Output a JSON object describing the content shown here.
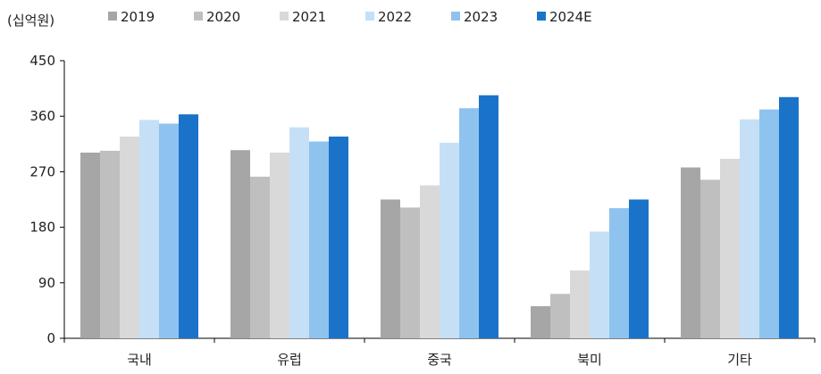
{
  "chart_data": {
    "type": "bar",
    "unit_label": "(십억원)",
    "categories": [
      "국내",
      "유럽",
      "중국",
      "북미",
      "기타"
    ],
    "series": [
      {
        "name": "2019",
        "color": "#a6a6a6",
        "values": [
          301,
          305,
          225,
          52,
          277
        ]
      },
      {
        "name": "2020",
        "color": "#bfbfbf",
        "values": [
          304,
          262,
          212,
          72,
          257
        ]
      },
      {
        "name": "2021",
        "color": "#d9d9d9",
        "values": [
          327,
          301,
          248,
          110,
          291
        ]
      },
      {
        "name": "2022",
        "color": "#c5e0f6",
        "values": [
          354,
          342,
          317,
          173,
          355
        ]
      },
      {
        "name": "2023",
        "color": "#8ec3f0",
        "values": [
          348,
          319,
          373,
          211,
          371
        ]
      },
      {
        "name": "2024E",
        "color": "#1a73c9",
        "values": [
          363,
          327,
          394,
          225,
          391
        ]
      }
    ],
    "yticks": [
      0,
      90,
      180,
      270,
      360,
      450
    ],
    "ylim": [
      0,
      450
    ],
    "grid": false,
    "legend_position": "top"
  }
}
